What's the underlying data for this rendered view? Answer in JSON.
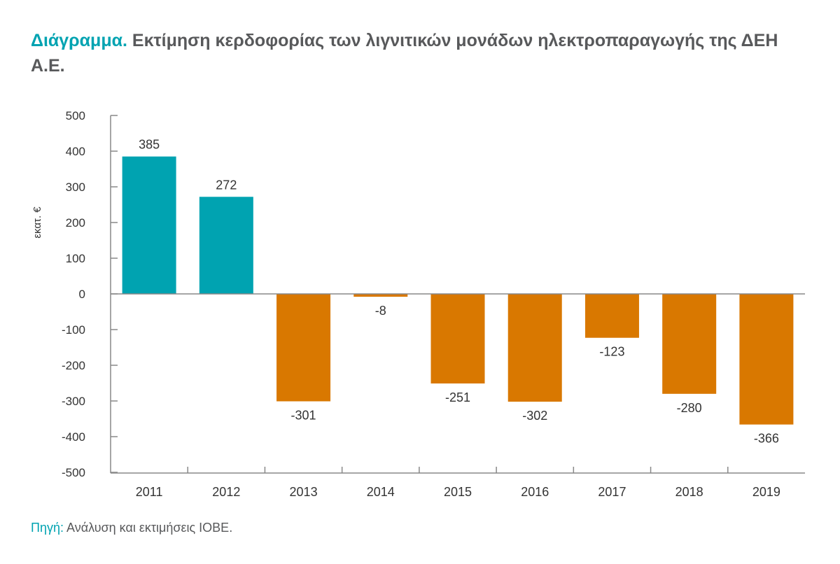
{
  "title": {
    "lead": "Διάγραμμα.",
    "text": "Εκτίμηση κερδοφορίας των λιγνιτικών μονάδων ηλεκτροπαραγωγής της ΔΕΗ Α.Ε."
  },
  "source": {
    "lead": "Πηγή:",
    "text": "Ανάλυση και εκτιμήσεις ΙΟΒΕ."
  },
  "chart_data": {
    "type": "bar",
    "categories": [
      "2011",
      "2012",
      "2013",
      "2014",
      "2015",
      "2016",
      "2017",
      "2018",
      "2019"
    ],
    "values": [
      385,
      272,
      -301,
      -8,
      -251,
      -302,
      -123,
      -280,
      -366
    ],
    "data_labels": [
      "385",
      "272",
      "-301",
      "-8",
      "-251",
      "-302",
      "-123",
      "-280",
      "-366"
    ],
    "ylabel": "εκατ. €",
    "xlabel": "",
    "ylim": [
      -500,
      500
    ],
    "yticks": [
      500,
      400,
      300,
      200,
      100,
      0,
      -100,
      -200,
      -300,
      -400,
      -500
    ],
    "grid": false,
    "colors": {
      "positive": "#00a3b1",
      "negative": "#d97800"
    }
  }
}
